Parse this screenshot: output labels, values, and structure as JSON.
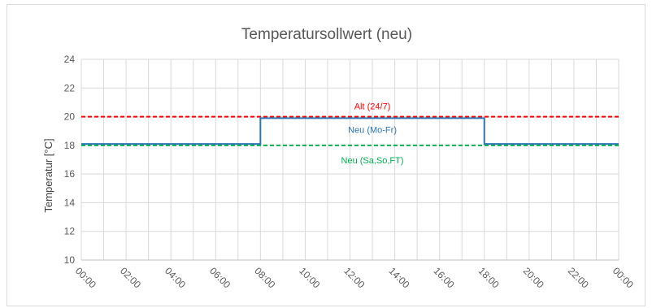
{
  "chart_data": {
    "type": "line",
    "title": "Temperatursollwert (neu)",
    "xlabel": "",
    "ylabel": "Temperatur [°C]",
    "ylim": [
      10,
      24
    ],
    "yticks": [
      "10",
      "12",
      "14",
      "16",
      "18",
      "20",
      "22",
      "24"
    ],
    "xlim": [
      0,
      24
    ],
    "xticks": [
      "00:00",
      "02:00",
      "04:00",
      "06:00",
      "08:00",
      "10:00",
      "12:00",
      "14:00",
      "16:00",
      "18:00",
      "20:00",
      "22:00",
      "00:00"
    ],
    "grid": true,
    "legend": "none",
    "series": [
      {
        "name": "Alt (24/7)",
        "color": "#ff0000",
        "style": "dashed",
        "x": [
          0,
          24
        ],
        "y": [
          20,
          20
        ]
      },
      {
        "name": "Neu (Mo-Fr)",
        "color": "#2e75b6",
        "style": "step",
        "x": [
          0,
          8,
          8,
          18,
          18,
          24
        ],
        "y": [
          18.1,
          18.1,
          19.9,
          19.9,
          18.1,
          18.1
        ]
      },
      {
        "name": "Neu (Sa,So,FT)",
        "color": "#00b050",
        "style": "dashed",
        "x": [
          0,
          24
        ],
        "y": [
          18,
          18
        ]
      }
    ]
  }
}
